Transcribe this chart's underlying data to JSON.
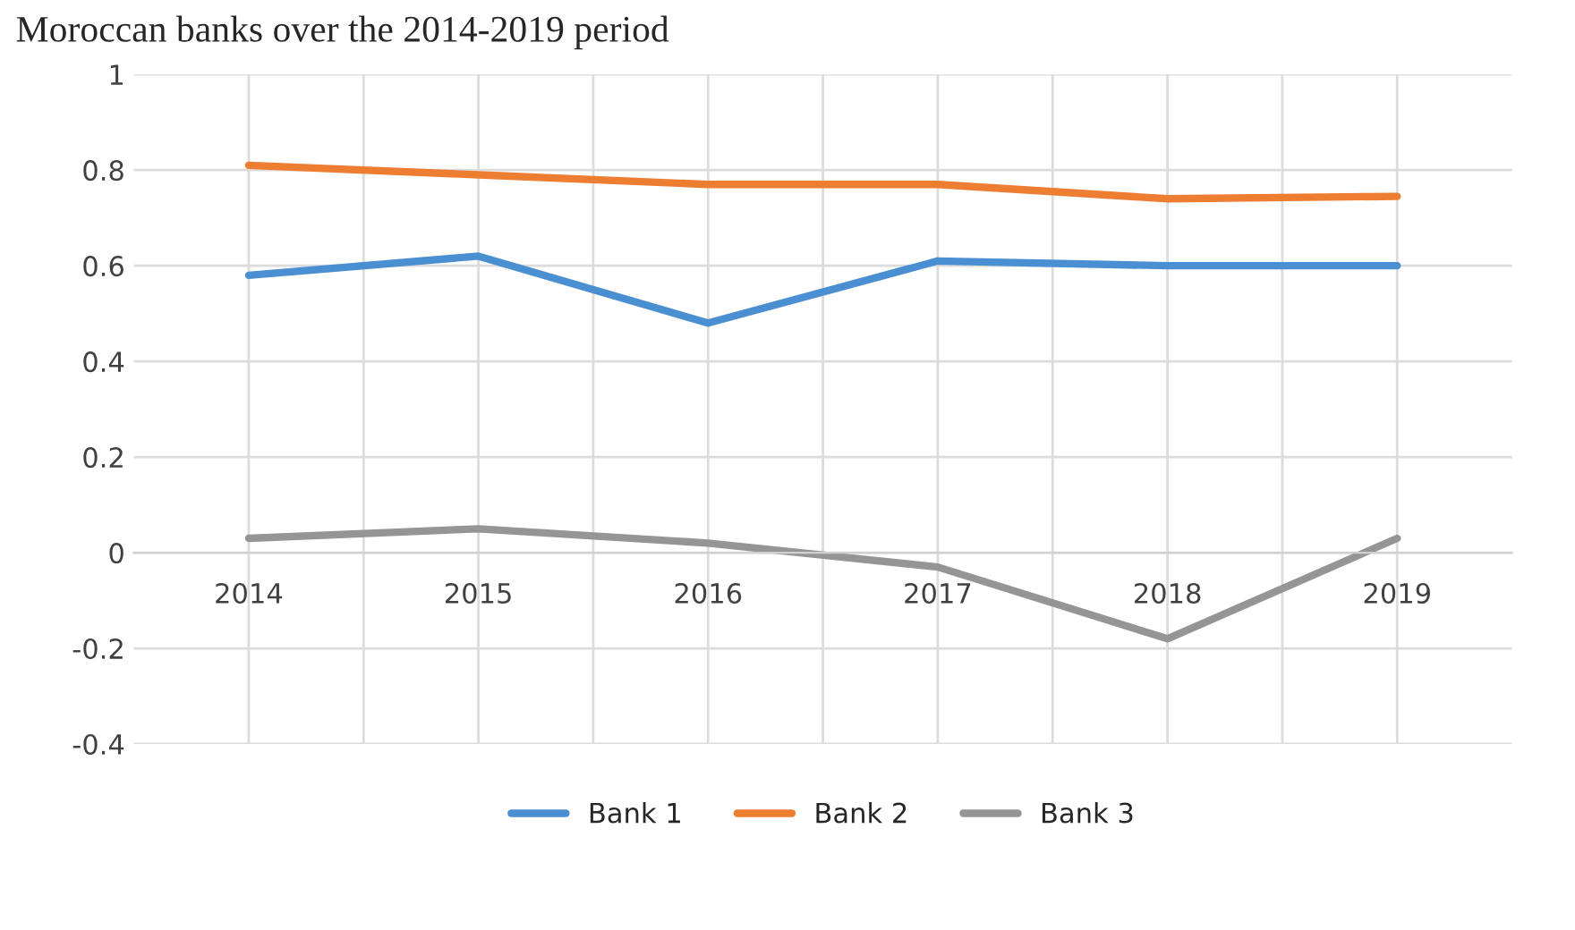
{
  "chart_data": {
    "type": "line",
    "title": "Moroccan banks over the 2014-2019 period",
    "categories": [
      "2014",
      "2015",
      "2016",
      "2017",
      "2018",
      "2019"
    ],
    "series": [
      {
        "name": "Bank 1",
        "color": "#4a8fd1",
        "values": [
          0.58,
          0.62,
          0.48,
          0.61,
          0.6,
          0.6
        ]
      },
      {
        "name": "Bank 2",
        "color": "#ed7d31",
        "values": [
          0.81,
          0.79,
          0.77,
          0.77,
          0.74,
          0.745
        ]
      },
      {
        "name": "Bank 3",
        "color": "#959595",
        "values": [
          0.03,
          0.05,
          0.02,
          -0.03,
          -0.18,
          0.03
        ]
      }
    ],
    "ylim": [
      -0.4,
      1
    ],
    "yticks": [
      -0.4,
      -0.2,
      0,
      0.2,
      0.4,
      0.6,
      0.8,
      1
    ],
    "grid": true,
    "legend": "bottom",
    "marker": "none",
    "line_style": "solid"
  }
}
